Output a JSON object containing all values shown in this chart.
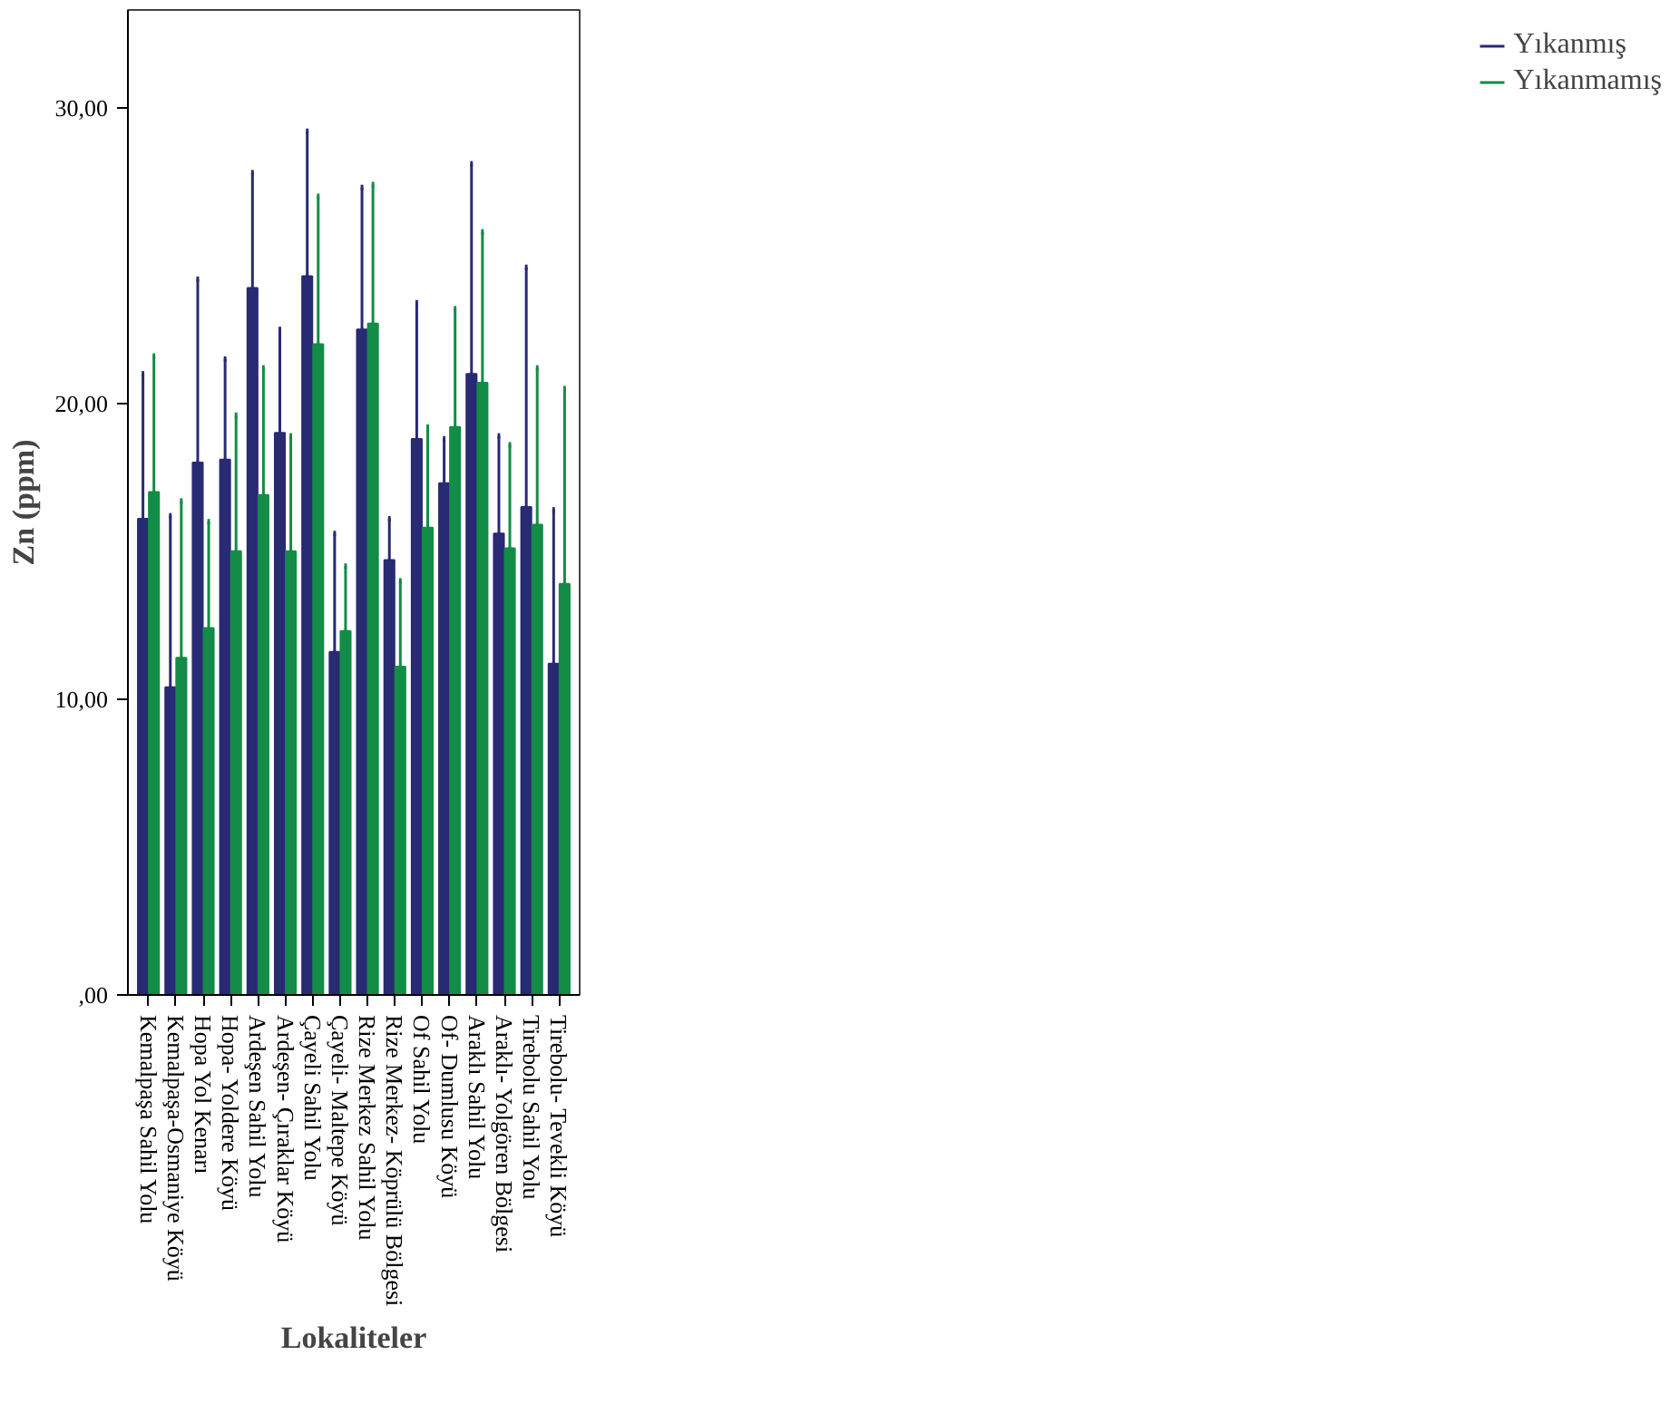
{
  "chart_data": {
    "type": "bar",
    "xlabel": "Lokaliteler",
    "ylabel": "Zn (ppm)",
    "categories": [
      "Kemalpaşa Sahil Yolu",
      "Kemalpaşa-Osmaniye Köyü",
      "Hopa Yol Kenarı",
      "Hopa- Yoldere Köyü",
      "Ardeşen Sahil Yolu",
      "Ardeşen- Çıraklar Köyü",
      "Çayeli Sahil Yolu",
      "Çayeli- Maltepe Köyü",
      "Rize Merkez Sahil Yolu",
      "Rize Merkez- Köprülü Bölgesi",
      "Of Sahil Yolu",
      "Of- Dumlusu Köyü",
      "Araklı Sahil Yolu",
      "Araklı- Yolgören Bölgesi",
      "Tirebolu Sahil Yolu",
      "Tirebolu- Tevekli Köyü"
    ],
    "series": [
      {
        "name": "Yıkanmış",
        "color": "#282a73",
        "values": [
          16.1,
          10.4,
          18.0,
          18.1,
          23.9,
          19.0,
          24.3,
          11.6,
          22.5,
          14.7,
          18.8,
          17.3,
          21.0,
          15.6,
          16.5,
          11.2
        ],
        "errors": [
          [
            16.1,
            21.0
          ],
          [
            10.4,
            16.2
          ],
          [
            18.0,
            24.2
          ],
          [
            18.1,
            21.5
          ],
          [
            23.9,
            27.8
          ],
          [
            19.0,
            22.5
          ],
          [
            24.3,
            29.2
          ],
          [
            11.6,
            15.6
          ],
          [
            22.5,
            27.3
          ],
          [
            14.7,
            16.1
          ],
          [
            18.8,
            23.4
          ],
          [
            17.3,
            18.8
          ],
          [
            21.0,
            28.1
          ],
          [
            15.6,
            18.9
          ],
          [
            16.5,
            24.6
          ],
          [
            11.2,
            16.4
          ]
        ]
      },
      {
        "name": "Yıkanmamış",
        "color": "#128c46",
        "values": [
          17.0,
          11.4,
          12.4,
          15.0,
          16.9,
          15.0,
          22.0,
          12.3,
          22.7,
          11.1,
          15.8,
          19.2,
          20.7,
          15.1,
          15.9,
          13.9
        ],
        "errors": [
          [
            17.0,
            21.6
          ],
          [
            11.4,
            16.7
          ],
          [
            12.4,
            16.0
          ],
          [
            15.0,
            19.6
          ],
          [
            16.9,
            21.2
          ],
          [
            15.0,
            18.9
          ],
          [
            22.0,
            27.0
          ],
          [
            12.3,
            14.5
          ],
          [
            22.7,
            27.4
          ],
          [
            11.1,
            14.0
          ],
          [
            15.8,
            19.2
          ],
          [
            19.2,
            23.2
          ],
          [
            20.7,
            25.8
          ],
          [
            15.1,
            18.6
          ],
          [
            15.9,
            21.2
          ],
          [
            13.9,
            20.5
          ]
        ]
      }
    ],
    "ylim": [
      0,
      33.3
    ],
    "yticks": [
      {
        "value": 0,
        "label": ",00"
      },
      {
        "value": 10,
        "label": "10,00"
      },
      {
        "value": 20,
        "label": "20,00"
      },
      {
        "value": 30,
        "label": "30,00"
      }
    ],
    "legend": "top right",
    "grid": false
  }
}
